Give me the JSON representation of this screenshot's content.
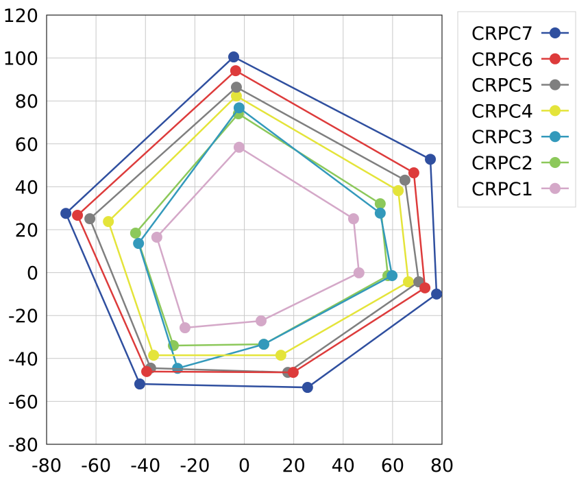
{
  "chart_data": {
    "type": "line",
    "title": "",
    "xlabel": "",
    "ylabel": "",
    "xlim": [
      -80,
      80
    ],
    "ylim": [
      -80,
      120
    ],
    "xticks": [
      "-80",
      "-60",
      "-40",
      "-20",
      "0",
      "20",
      "40",
      "60",
      "80"
    ],
    "yticks": [
      "-80",
      "-60",
      "-40",
      "-20",
      "0",
      "20",
      "40",
      "60",
      "80",
      "100",
      "120"
    ],
    "grid": true,
    "legend_position": "right",
    "closed_polygons": true,
    "series": [
      {
        "name": "CRPC7",
        "color": "#2f4f9f",
        "points": [
          [
            -4.3,
            100.5
          ],
          [
            75.3,
            52.8
          ],
          [
            77.8,
            -10
          ],
          [
            25.6,
            -53.5
          ],
          [
            -42.3,
            -51.9
          ],
          [
            -72.2,
            27.6
          ]
        ]
      },
      {
        "name": "CRPC6",
        "color": "#dd3b3b",
        "points": [
          [
            -3.5,
            94.1
          ],
          [
            68.6,
            46.5
          ],
          [
            73.1,
            -7.1
          ],
          [
            19.8,
            -46.5
          ],
          [
            -39.5,
            -46.1
          ],
          [
            -67.5,
            26.7
          ]
        ]
      },
      {
        "name": "CRPC5",
        "color": "#7f7f7f",
        "points": [
          [
            -3.2,
            86.4
          ],
          [
            65,
            43.1
          ],
          [
            70.6,
            -4.3
          ],
          [
            17.6,
            -46.5
          ],
          [
            -37.9,
            -44.5
          ],
          [
            -62.5,
            25.1
          ]
        ]
      },
      {
        "name": "CRPC4",
        "color": "#e4e43a",
        "points": [
          [
            -3.2,
            82.3
          ],
          [
            62.3,
            38.2
          ],
          [
            66.4,
            -4.3
          ],
          [
            14.8,
            -38.5
          ],
          [
            -36.7,
            -38.5
          ],
          [
            -55,
            23.8
          ]
        ]
      },
      {
        "name": "CRPC3",
        "color": "#3399bb",
        "points": [
          [
            -2.1,
            76.8
          ],
          [
            55,
            27.7
          ],
          [
            59.8,
            -1.4
          ],
          [
            7.9,
            -33.4
          ],
          [
            -27,
            -44.6
          ],
          [
            -42.8,
            13.6
          ]
        ]
      },
      {
        "name": "CRPC2",
        "color": "#8cc85a",
        "points": [
          [
            -2.4,
            74
          ],
          [
            55,
            32.1
          ],
          [
            58.1,
            -1.4
          ],
          [
            7.9,
            -33.4
          ],
          [
            -28.7,
            -34
          ],
          [
            -44,
            18.4
          ]
        ]
      },
      {
        "name": "CRPC1",
        "color": "#d4a8c8",
        "points": [
          [
            -2.1,
            58.4
          ],
          [
            44.2,
            25.1
          ],
          [
            46.4,
            -0.1
          ],
          [
            6.8,
            -22.5
          ],
          [
            -24,
            -25.7
          ],
          [
            -35.4,
            16.5
          ]
        ]
      }
    ]
  }
}
